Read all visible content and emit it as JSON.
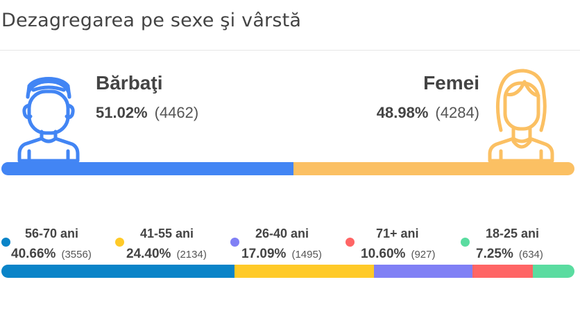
{
  "title": "Dezagregarea pe sexe şi vârstă",
  "colors": {
    "male": "#4285F4",
    "female": "#FBC063",
    "age_56_70": "#0A84C8",
    "age_41_55": "#FFCA28",
    "age_26_40": "#8080F5",
    "age_71_plus": "#FF6565",
    "age_18_25": "#5ADCA0"
  },
  "gender": {
    "male": {
      "label": "Bărbaţi",
      "percent": "51.02%",
      "count": "(4462)",
      "share": 51.02,
      "icon": "male-user-icon"
    },
    "female": {
      "label": "Femei",
      "percent": "48.98%",
      "count": "(4284)",
      "share": 48.98,
      "icon": "female-user-icon"
    }
  },
  "age_groups": [
    {
      "label": "56-70 ani",
      "percent": "40.66%",
      "count": "(3556)",
      "share": 40.66,
      "color": "#0A84C8"
    },
    {
      "label": "41-55 ani",
      "percent": "24.40%",
      "count": "(2134)",
      "share": 24.4,
      "color": "#FFCA28"
    },
    {
      "label": "26-40 ani",
      "percent": "17.09%",
      "count": "(1495)",
      "share": 17.09,
      "color": "#8080F5"
    },
    {
      "label": "71+ ani",
      "percent": "10.60%",
      "count": "(927)",
      "share": 10.6,
      "color": "#FF6565"
    },
    {
      "label": "18-25 ani",
      "percent": "7.25%",
      "count": "(634)",
      "share": 7.25,
      "color": "#5ADCA0"
    }
  ]
}
